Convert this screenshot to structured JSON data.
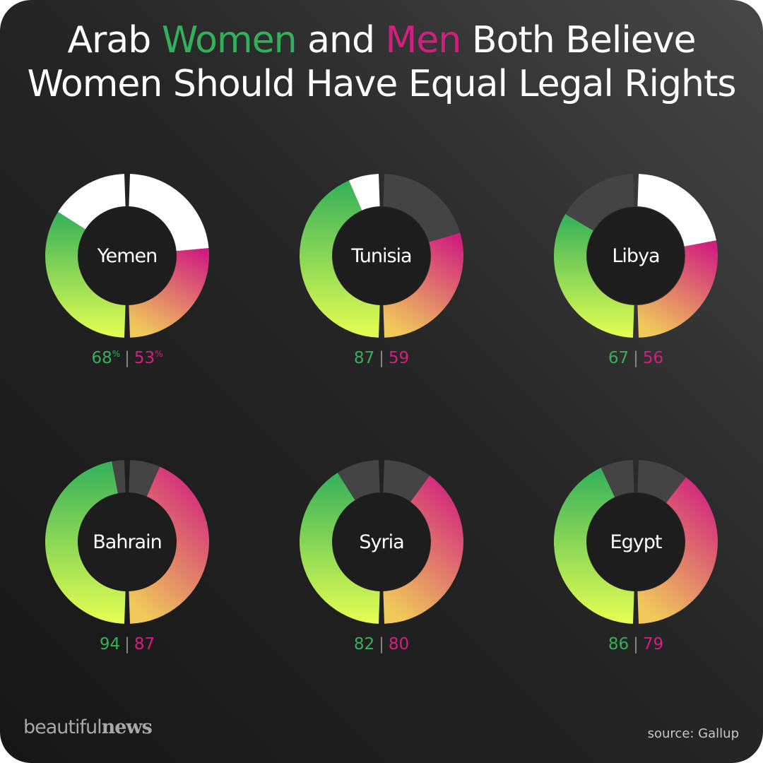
{
  "title": {
    "line1_part1": "Arab ",
    "line1_women": "Women",
    "line1_part2": " and ",
    "line1_men": "Men",
    "line1_part3": " Both Believe",
    "line2": "Women Should Have Equal Legal Rights"
  },
  "colors": {
    "women": "#33b05a",
    "men": "#d0207f",
    "remainder_light": "#ffffff",
    "remainder_dark": "#444444",
    "gradient_bottom": "#e6ff52",
    "men_gradient_bottom": "#f0c95a"
  },
  "percent_sign": "%",
  "separator": "|",
  "brand": {
    "light": "beautiful",
    "bold": "news"
  },
  "source": "source: Gallup",
  "chart_data": {
    "type": "donut",
    "title": "Arab Women and Men Both Believe Women Should Have Equal Legal Rights",
    "unit": "%",
    "series": [
      {
        "name": "Women",
        "color": "#33b05a"
      },
      {
        "name": "Men",
        "color": "#d0207f"
      }
    ],
    "countries": [
      {
        "name": "Yemen",
        "women": 68,
        "men": 53,
        "remainder": "light"
      },
      {
        "name": "Tunisia",
        "women": 87,
        "men": 59,
        "remainder": "mixed"
      },
      {
        "name": "Libya",
        "women": 67,
        "men": 56,
        "remainder": "mixed"
      },
      {
        "name": "Bahrain",
        "women": 94,
        "men": 87,
        "remainder": "dark"
      },
      {
        "name": "Syria",
        "women": 82,
        "men": 80,
        "remainder": "dark"
      },
      {
        "name": "Egypt",
        "women": 86,
        "men": 79,
        "remainder": "dark"
      }
    ]
  }
}
